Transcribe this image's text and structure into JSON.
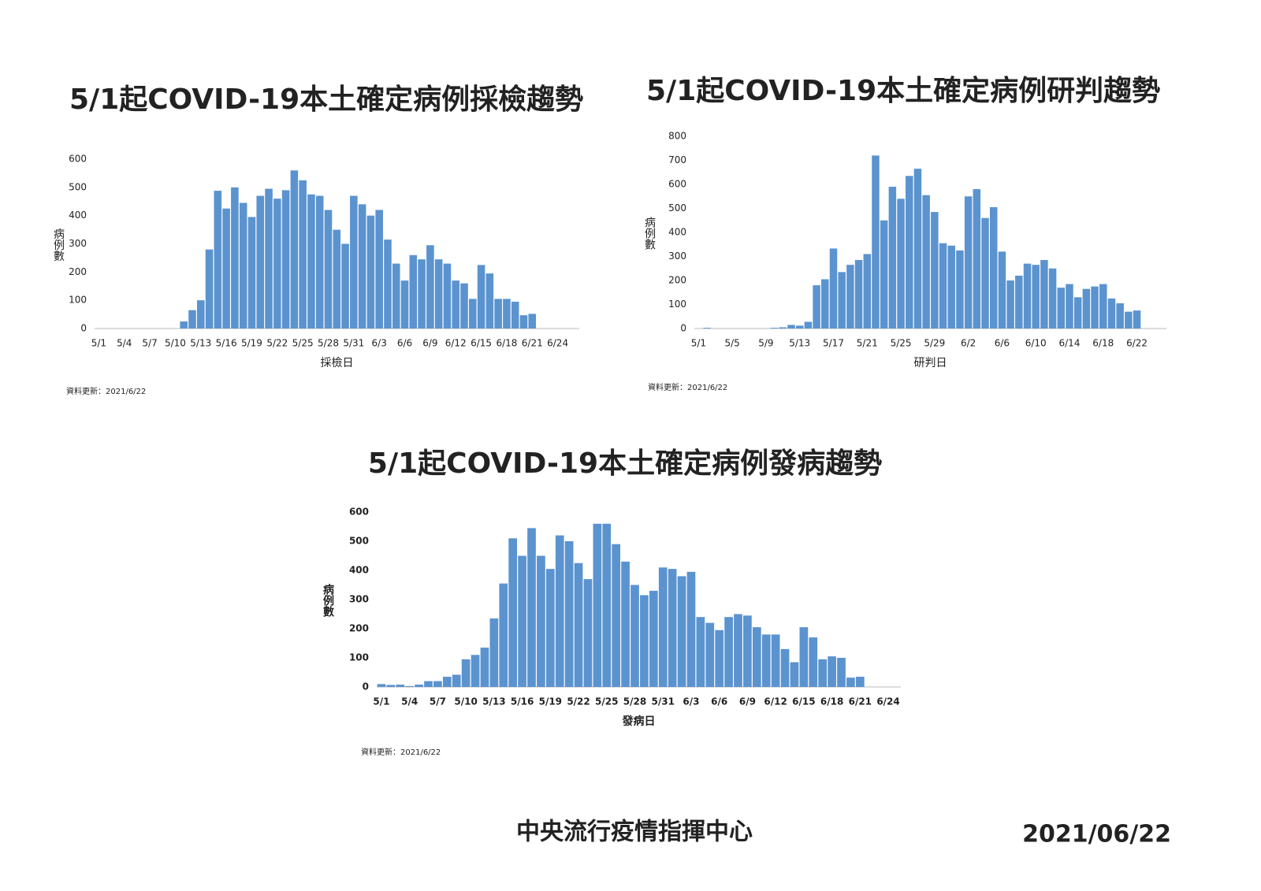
{
  "chart_data": [
    {
      "type": "bar",
      "title": "5/1起COVID-19本土確定病例採檢趨勢",
      "x_label": "採檢日",
      "y_label": "病例數",
      "note": "資料更新：2021/6/22",
      "color": "#5b93cf",
      "categories": [
        "5/1",
        null,
        null,
        "5/4",
        null,
        null,
        "5/7",
        null,
        null,
        "5/10",
        null,
        null,
        "5/13",
        null,
        null,
        "5/16",
        null,
        null,
        "5/19",
        null,
        null,
        "5/22",
        null,
        null,
        "5/25",
        null,
        null,
        "5/28",
        null,
        null,
        "5/31",
        null,
        null,
        "6/3",
        null,
        null,
        "6/6",
        null,
        null,
        "6/9",
        null,
        null,
        "6/12",
        null,
        null,
        "6/15",
        null,
        null,
        "6/18",
        null,
        null,
        "6/21",
        null,
        null,
        "6/24"
      ],
      "values": [
        0,
        0,
        0,
        0,
        0,
        0,
        0,
        0,
        0,
        0,
        25,
        65,
        100,
        280,
        488,
        425,
        500,
        445,
        395,
        470,
        495,
        460,
        490,
        560,
        525,
        475,
        470,
        420,
        350,
        300,
        470,
        440,
        400,
        420,
        315,
        230,
        170,
        260,
        245,
        295,
        245,
        230,
        170,
        160,
        105,
        225,
        195,
        105,
        105,
        95,
        47,
        52,
        null,
        null,
        null
      ],
      "ylim": [
        0,
        600
      ],
      "yticks": [
        0,
        100,
        200,
        300,
        400,
        500,
        600
      ]
    },
    {
      "type": "bar",
      "title": "5/1起COVID-19本土確定病例研判趨勢",
      "x_label": "研判日",
      "y_label": "病例數",
      "note": "資料更新：2021/6/22",
      "color": "#5b93cf",
      "categories": [
        "5/1",
        null,
        null,
        null,
        "5/5",
        null,
        null,
        null,
        "5/9",
        null,
        null,
        null,
        "5/13",
        null,
        null,
        null,
        "5/17",
        null,
        null,
        null,
        "5/21",
        null,
        null,
        null,
        "5/25",
        null,
        null,
        null,
        "5/29",
        null,
        null,
        null,
        "6/2",
        null,
        null,
        null,
        "6/6",
        null,
        null,
        null,
        "6/10",
        null,
        null,
        null,
        "6/14",
        null,
        null,
        null,
        "6/18",
        null,
        null,
        null,
        "6/22",
        null,
        null,
        null
      ],
      "values": [
        0,
        3,
        0,
        0,
        0,
        0,
        0,
        0,
        0,
        3,
        5,
        15,
        12,
        28,
        180,
        205,
        333,
        235,
        265,
        285,
        310,
        720,
        450,
        590,
        540,
        635,
        665,
        555,
        485,
        355,
        345,
        325,
        550,
        580,
        460,
        505,
        320,
        200,
        220,
        270,
        265,
        285,
        250,
        170,
        185,
        130,
        165,
        175,
        185,
        125,
        105,
        70,
        75,
        null,
        null,
        null
      ],
      "ylim": [
        0,
        800
      ],
      "yticks": [
        0,
        100,
        200,
        300,
        400,
        500,
        600,
        700,
        800
      ]
    },
    {
      "type": "bar",
      "title": "5/1起COVID-19本土確定病例發病趨勢",
      "x_label": "發病日",
      "y_label": "病例數",
      "note": "資料更新：2021/6/22",
      "color": "#5b93cf",
      "categories": [
        "5/1",
        null,
        null,
        "5/4",
        null,
        null,
        "5/7",
        null,
        null,
        "5/10",
        null,
        null,
        "5/13",
        null,
        null,
        "5/16",
        null,
        null,
        "5/19",
        null,
        null,
        "5/22",
        null,
        null,
        "5/25",
        null,
        null,
        "5/28",
        null,
        null,
        "5/31",
        null,
        null,
        "6/3",
        null,
        null,
        "6/6",
        null,
        null,
        "6/9",
        null,
        null,
        "6/12",
        null,
        null,
        "6/15",
        null,
        null,
        "6/18",
        null,
        null,
        "6/21",
        null,
        null,
        "6/24"
      ],
      "values": [
        10,
        7,
        8,
        3,
        8,
        20,
        20,
        35,
        42,
        95,
        110,
        135,
        235,
        355,
        510,
        450,
        545,
        450,
        405,
        520,
        500,
        425,
        370,
        560,
        560,
        490,
        430,
        350,
        315,
        330,
        410,
        405,
        380,
        395,
        240,
        220,
        195,
        240,
        250,
        245,
        205,
        180,
        180,
        130,
        85,
        205,
        170,
        95,
        105,
        100,
        32,
        35,
        null,
        null,
        null
      ],
      "ylim": [
        0,
        600
      ],
      "yticks": [
        0,
        100,
        200,
        300,
        400,
        500,
        600
      ]
    }
  ],
  "footer": {
    "organization": "中央流行疫情指揮中心",
    "date": "2021/06/22"
  }
}
